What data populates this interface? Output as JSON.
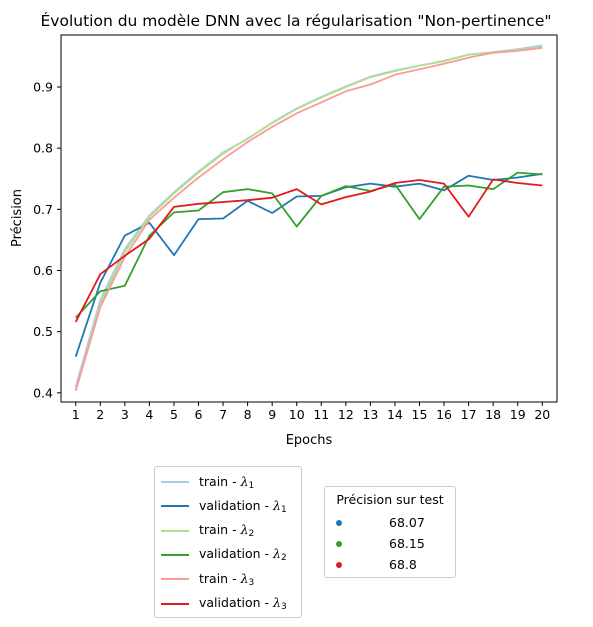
{
  "chart_data": {
    "type": "line",
    "title": "Évolution du modèle DNN avec la régularisation \"Non-pertinence\"",
    "xlabel": "Epochs",
    "ylabel": "Précision",
    "x": [
      1,
      2,
      3,
      4,
      5,
      6,
      7,
      8,
      9,
      10,
      11,
      12,
      13,
      14,
      15,
      16,
      17,
      18,
      19,
      20
    ],
    "xlim": [
      0.4,
      20.6
    ],
    "ylim": [
      0.385,
      0.985
    ],
    "yticks": [
      0.4,
      0.5,
      0.6,
      0.7,
      0.8,
      0.9
    ],
    "ytick_labels": [
      "0.4",
      "0.5",
      "0.6",
      "0.7",
      "0.8",
      "0.9"
    ],
    "xtick_labels": [
      "1",
      "2",
      "3",
      "4",
      "5",
      "6",
      "7",
      "8",
      "9",
      "10",
      "11",
      "12",
      "13",
      "14",
      "15",
      "16",
      "17",
      "18",
      "19",
      "20"
    ],
    "series": [
      {
        "name": "train - ",
        "sub": "1",
        "color": "#a6cee3",
        "values": [
          0.41,
          0.552,
          0.635,
          0.69,
          0.728,
          0.762,
          0.793,
          0.815,
          0.842,
          0.865,
          0.884,
          0.901,
          0.917,
          0.927,
          0.935,
          0.943,
          0.953,
          0.957,
          0.962,
          0.968
        ]
      },
      {
        "name": "validation - ",
        "sub": "1",
        "color": "#1f78b4",
        "values": [
          0.459,
          0.58,
          0.657,
          0.678,
          0.625,
          0.684,
          0.685,
          0.714,
          0.694,
          0.721,
          0.722,
          0.736,
          0.742,
          0.737,
          0.742,
          0.731,
          0.755,
          0.748,
          0.752,
          0.758
        ]
      },
      {
        "name": "train - ",
        "sub": "2",
        "color": "#b2df8a",
        "values": [
          0.404,
          0.545,
          0.63,
          0.688,
          0.726,
          0.76,
          0.791,
          0.816,
          0.841,
          0.864,
          0.883,
          0.9,
          0.916,
          0.926,
          0.935,
          0.942,
          0.953,
          0.956,
          0.96,
          0.966
        ]
      },
      {
        "name": "validation - ",
        "sub": "2",
        "color": "#33a02c",
        "values": [
          0.523,
          0.566,
          0.575,
          0.657,
          0.695,
          0.698,
          0.728,
          0.733,
          0.726,
          0.672,
          0.722,
          0.738,
          0.73,
          0.741,
          0.684,
          0.737,
          0.739,
          0.733,
          0.76,
          0.757
        ]
      },
      {
        "name": "train - ",
        "sub": "3",
        "color": "#fb9a99",
        "values": [
          0.403,
          0.54,
          0.622,
          0.683,
          0.719,
          0.752,
          0.782,
          0.81,
          0.835,
          0.857,
          0.875,
          0.893,
          0.904,
          0.92,
          0.929,
          0.938,
          0.948,
          0.956,
          0.959,
          0.964
        ]
      },
      {
        "name": "validation - ",
        "sub": "3",
        "color": "#e31a1c",
        "values": [
          0.516,
          0.594,
          0.624,
          0.652,
          0.704,
          0.709,
          0.712,
          0.715,
          0.719,
          0.733,
          0.708,
          0.72,
          0.729,
          0.743,
          0.748,
          0.742,
          0.688,
          0.749,
          0.743,
          0.739
        ]
      }
    ],
    "legend_placement": "below-left",
    "grid": false,
    "test_legend": {
      "title": "Précision sur test",
      "items": [
        {
          "label": "68.07",
          "color": "#1f78b4"
        },
        {
          "label": "68.15",
          "color": "#33a02c"
        },
        {
          "label": "68.8",
          "color": "#e31a1c"
        }
      ]
    }
  }
}
